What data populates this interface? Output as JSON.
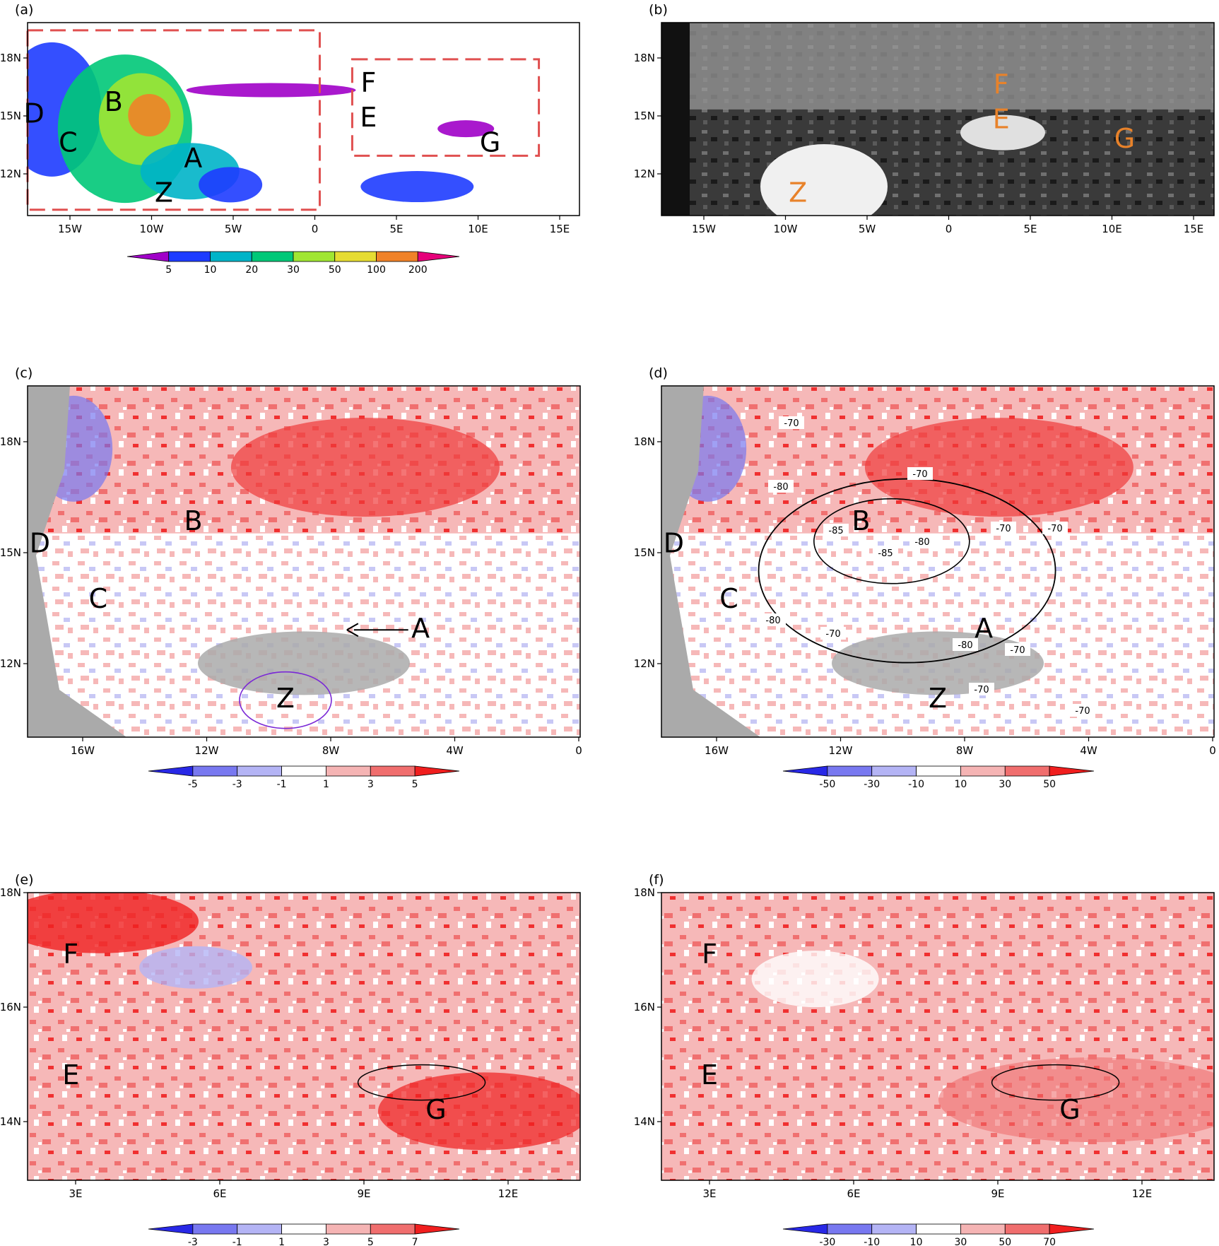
{
  "panels": [
    {
      "id": "a",
      "tag": "(a)",
      "xticks": [
        "15W",
        "10W",
        "5W",
        "0",
        "5E",
        "10E",
        "15E"
      ],
      "yticks": [
        "18N",
        "15N",
        "12N"
      ],
      "legend_ticks": [
        "5",
        "10",
        "20",
        "30",
        "50",
        "100",
        "200"
      ],
      "labels": [
        "D",
        "B",
        "C",
        "A",
        "Z",
        "F",
        "E",
        "G"
      ]
    },
    {
      "id": "b",
      "tag": "(b)",
      "xticks": [
        "15W",
        "10W",
        "5W",
        "0",
        "5E",
        "10E",
        "15E"
      ],
      "yticks": [
        "18N",
        "15N",
        "12N"
      ],
      "labels": [
        "F",
        "E",
        "G",
        "Z"
      ]
    },
    {
      "id": "c",
      "tag": "(c)",
      "xticks": [
        "16W",
        "12W",
        "8W",
        "4W",
        "0"
      ],
      "yticks": [
        "18N",
        "15N",
        "12N"
      ],
      "legend_ticks": [
        "-5",
        "-3",
        "-1",
        "1",
        "3",
        "5"
      ],
      "labels": [
        "B",
        "D",
        "C",
        "A",
        "Z"
      ]
    },
    {
      "id": "d",
      "tag": "(d)",
      "xticks": [
        "16W",
        "12W",
        "8W",
        "4W",
        "0"
      ],
      "yticks": [
        "18N",
        "15N",
        "12N"
      ],
      "legend_ticks": [
        "-50",
        "-30",
        "-10",
        "10",
        "30",
        "50"
      ],
      "labels": [
        "B",
        "D",
        "C",
        "A",
        "Z"
      ],
      "contour_labels": [
        "-70",
        "-80",
        "-70",
        "-85",
        "-85",
        "-80",
        "-70",
        "-70",
        "-80",
        "-70",
        "-80",
        "-70",
        "-70",
        "-70"
      ]
    },
    {
      "id": "e",
      "tag": "(e)",
      "xticks": [
        "3E",
        "6E",
        "9E",
        "12E"
      ],
      "yticks": [
        "18N",
        "16N",
        "14N"
      ],
      "legend_ticks": [
        "-3",
        "-1",
        "1",
        "3",
        "5",
        "7"
      ],
      "labels": [
        "F",
        "E",
        "G"
      ]
    },
    {
      "id": "f",
      "tag": "(f)",
      "xticks": [
        "3E",
        "6E",
        "9E",
        "12E"
      ],
      "yticks": [
        "18N",
        "16N",
        "14N"
      ],
      "legend_ticks": [
        "-30",
        "-10",
        "10",
        "30",
        "50",
        "70"
      ],
      "labels": [
        "F",
        "E",
        "G"
      ]
    }
  ],
  "colors": {
    "rain_scale": [
      "#a000c8",
      "#1e3cff",
      "#00b4c8",
      "#00c878",
      "#a0e632",
      "#e6dc32",
      "#f08228",
      "#e6007a"
    ],
    "diverging": [
      "#2828e6",
      "#7878f0",
      "#b4b4f5",
      "#ffffff",
      "#f5b4b4",
      "#f06e6e",
      "#f01e1e"
    ],
    "missing": "#aaaaaa",
    "label_orange": "#e8822a",
    "box_dashed": "#e05050"
  },
  "chart_data": [
    {
      "panel": "a",
      "type": "heatmap",
      "title": "",
      "xlabel": "",
      "ylabel": "",
      "xlim": [
        -18,
        16
      ],
      "ylim": [
        10,
        20
      ],
      "colorbar_levels": [
        5,
        10,
        20,
        30,
        50,
        100,
        200
      ],
      "dashed_boxes": [
        {
          "lon": [
            -18,
            0
          ],
          "lat": [
            10.3,
            19.6
          ]
        },
        {
          "lon": [
            2,
            13.5
          ],
          "lat": [
            13.1,
            18.1
          ]
        }
      ],
      "annotations": [
        {
          "text": "D",
          "lon": -17.6,
          "lat": 15.2
        },
        {
          "text": "B",
          "lon": -12.7,
          "lat": 15.8
        },
        {
          "text": "C",
          "lon": -15.5,
          "lat": 13.7
        },
        {
          "text": "A",
          "lon": -7.8,
          "lat": 12.9
        },
        {
          "text": "Z",
          "lon": -9.6,
          "lat": 11.1
        },
        {
          "text": "F",
          "lon": 3.0,
          "lat": 16.8
        },
        {
          "text": "E",
          "lon": 3.0,
          "lat": 15.0
        },
        {
          "text": "G",
          "lon": 10.5,
          "lat": 13.7
        }
      ]
    },
    {
      "panel": "b",
      "type": "heatmap",
      "title": "",
      "xlim": [
        -18,
        16
      ],
      "ylim": [
        10,
        20
      ],
      "annotations": [
        {
          "text": "F",
          "lon": 2.9,
          "lat": 16.7
        },
        {
          "text": "E",
          "lon": 2.9,
          "lat": 14.9
        },
        {
          "text": "G",
          "lon": 10.5,
          "lat": 13.9
        },
        {
          "text": "Z",
          "lon": -9.6,
          "lat": 11.1
        }
      ]
    },
    {
      "panel": "c",
      "type": "heatmap",
      "title": "",
      "xlim": [
        -18,
        0
      ],
      "ylim": [
        10,
        19.5
      ],
      "colorbar_levels": [
        -5,
        -3,
        -1,
        1,
        3,
        5
      ],
      "arrow": {
        "from": {
          "lon": -5.6,
          "lat": 12.9
        },
        "to": {
          "lon": -7.6,
          "lat": 12.9
        }
      },
      "annotations": [
        {
          "text": "B",
          "lon": -12.6,
          "lat": 15.8
        },
        {
          "text": "D",
          "lon": -17.6,
          "lat": 15.2
        },
        {
          "text": "C",
          "lon": -15.7,
          "lat": 13.7
        },
        {
          "text": "A",
          "lon": -5.2,
          "lat": 12.9
        },
        {
          "text": "Z",
          "lon": -9.6,
          "lat": 11.0
        }
      ]
    },
    {
      "panel": "d",
      "type": "heatmap",
      "title": "",
      "xlim": [
        -18,
        0
      ],
      "ylim": [
        10,
        19.5
      ],
      "colorbar_levels": [
        -50,
        -30,
        -10,
        10,
        30,
        50
      ],
      "contour_levels": [
        -85,
        -80,
        -70
      ],
      "annotations": [
        {
          "text": "B",
          "lon": -11.5,
          "lat": 15.8
        },
        {
          "text": "D",
          "lon": -17.6,
          "lat": 15.2
        },
        {
          "text": "C",
          "lon": -15.8,
          "lat": 13.7
        },
        {
          "text": "A",
          "lon": -7.5,
          "lat": 12.9
        },
        {
          "text": "Z",
          "lon": -9.0,
          "lat": 11.0
        }
      ]
    },
    {
      "panel": "e",
      "type": "heatmap",
      "title": "",
      "xlim": [
        2,
        13.5
      ],
      "ylim": [
        13,
        18
      ],
      "colorbar_levels": [
        -3,
        -1,
        1,
        3,
        5,
        7
      ],
      "annotations": [
        {
          "text": "F",
          "lon": 2.9,
          "lat": 16.9
        },
        {
          "text": "E",
          "lon": 2.9,
          "lat": 14.8
        },
        {
          "text": "G",
          "lon": 10.5,
          "lat": 14.2
        }
      ]
    },
    {
      "panel": "f",
      "type": "heatmap",
      "title": "",
      "xlim": [
        2,
        13.5
      ],
      "ylim": [
        13,
        18
      ],
      "colorbar_levels": [
        -30,
        -10,
        10,
        30,
        50,
        70
      ],
      "annotations": [
        {
          "text": "F",
          "lon": 3.0,
          "lat": 16.9
        },
        {
          "text": "E",
          "lon": 3.0,
          "lat": 14.8
        },
        {
          "text": "G",
          "lon": 10.5,
          "lat": 14.2
        }
      ]
    }
  ]
}
